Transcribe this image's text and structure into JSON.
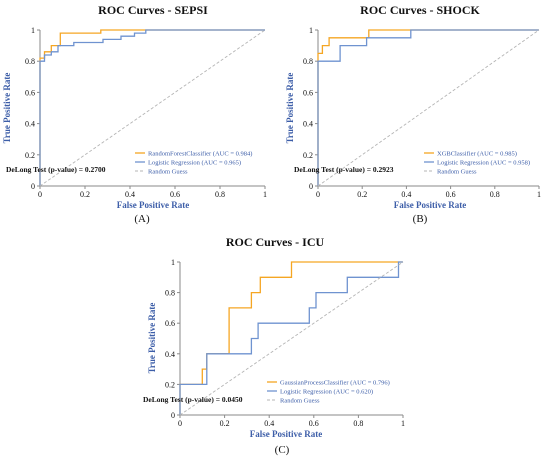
{
  "chart_data": [
    {
      "type": "line",
      "title": "ROC Curves - SEPSI",
      "xlabel": "False Positive Rate",
      "ylabel": "True Positive Rate",
      "xlim": [
        0,
        1
      ],
      "ylim": [
        0,
        1
      ],
      "x_ticks": [
        "0",
        "0.2",
        "0.4",
        "0.6",
        "0.8",
        "1"
      ],
      "y_ticks": [
        "0",
        "0.2",
        "0.4",
        "0.6",
        "0.8",
        "1"
      ],
      "annotation": "DeLong Test (p-value) = 0.2700",
      "panel_label": "(A)",
      "legend_position": "bottom-right",
      "series": [
        {
          "name": "RandomForestClassifier (AUC = 0.984)",
          "color": "#f5a623",
          "style": "solid",
          "points": [
            [
              0,
              0
            ],
            [
              0,
              0.82
            ],
            [
              0.02,
              0.82
            ],
            [
              0.02,
              0.86
            ],
            [
              0.05,
              0.86
            ],
            [
              0.05,
              0.9
            ],
            [
              0.09,
              0.9
            ],
            [
              0.09,
              0.98
            ],
            [
              0.27,
              0.98
            ],
            [
              0.27,
              1
            ],
            [
              1,
              1
            ]
          ]
        },
        {
          "name": "Logistic Regression (AUC = 0.965)",
          "color": "#6f93d0",
          "style": "solid",
          "points": [
            [
              0,
              0
            ],
            [
              0,
              0.8
            ],
            [
              0.02,
              0.8
            ],
            [
              0.02,
              0.84
            ],
            [
              0.05,
              0.84
            ],
            [
              0.05,
              0.86
            ],
            [
              0.08,
              0.86
            ],
            [
              0.08,
              0.9
            ],
            [
              0.15,
              0.9
            ],
            [
              0.15,
              0.92
            ],
            [
              0.28,
              0.92
            ],
            [
              0.28,
              0.94
            ],
            [
              0.36,
              0.94
            ],
            [
              0.36,
              0.96
            ],
            [
              0.42,
              0.96
            ],
            [
              0.42,
              0.98
            ],
            [
              0.47,
              0.98
            ],
            [
              0.47,
              1
            ],
            [
              1,
              1
            ]
          ]
        },
        {
          "name": "Random Guess",
          "color": "#b5b5b5",
          "style": "dashed",
          "points": [
            [
              0,
              0
            ],
            [
              1,
              1
            ]
          ]
        }
      ]
    },
    {
      "type": "line",
      "title": "ROC Curves - SHOCK",
      "xlabel": "False Positive Rate",
      "ylabel": "True Positive Rate",
      "xlim": [
        0,
        1
      ],
      "ylim": [
        0,
        1
      ],
      "x_ticks": [
        "0",
        "0.2",
        "0.4",
        "0.6",
        "0.8",
        "1"
      ],
      "y_ticks": [
        "0",
        "0.2",
        "0.4",
        "0.6",
        "0.8",
        "1"
      ],
      "annotation": "DeLong Test (p-value) = 0.2923",
      "panel_label": "(B)",
      "legend_position": "bottom-right",
      "series": [
        {
          "name": "XGBClassifier (AUC = 0.985)",
          "color": "#f5a623",
          "style": "solid",
          "points": [
            [
              0,
              0
            ],
            [
              0,
              0.85
            ],
            [
              0.02,
              0.85
            ],
            [
              0.02,
              0.9
            ],
            [
              0.05,
              0.9
            ],
            [
              0.05,
              0.95
            ],
            [
              0.23,
              0.95
            ],
            [
              0.23,
              1
            ],
            [
              1,
              1
            ]
          ]
        },
        {
          "name": "Logistic Regression (AUC = 0.958)",
          "color": "#6f93d0",
          "style": "solid",
          "points": [
            [
              0,
              0
            ],
            [
              0,
              0.8
            ],
            [
              0.1,
              0.8
            ],
            [
              0.1,
              0.9
            ],
            [
              0.22,
              0.9
            ],
            [
              0.22,
              0.95
            ],
            [
              0.42,
              0.95
            ],
            [
              0.42,
              1
            ],
            [
              1,
              1
            ]
          ]
        },
        {
          "name": "Random Guess",
          "color": "#b5b5b5",
          "style": "dashed",
          "points": [
            [
              0,
              0
            ],
            [
              1,
              1
            ]
          ]
        }
      ]
    },
    {
      "type": "line",
      "title": "ROC Curves - ICU",
      "xlabel": "False Positive Rate",
      "ylabel": "True Positive Rate",
      "xlim": [
        0,
        1
      ],
      "ylim": [
        0,
        1
      ],
      "x_ticks": [
        "0",
        "0.2",
        "0.4",
        "0.6",
        "0.8",
        "1"
      ],
      "y_ticks": [
        "0",
        "0.2",
        "0.4",
        "0.6",
        "0.8",
        "1"
      ],
      "annotation": "DeLong Test (p-value) = 0.0450",
      "panel_label": "(C)",
      "legend_position": "bottom-right",
      "series": [
        {
          "name": "GaussianProcessClassifier (AUC = 0.796)",
          "color": "#f5a623",
          "style": "solid",
          "points": [
            [
              0,
              0
            ],
            [
              0,
              0.2
            ],
            [
              0.1,
              0.2
            ],
            [
              0.1,
              0.3
            ],
            [
              0.12,
              0.3
            ],
            [
              0.12,
              0.4
            ],
            [
              0.22,
              0.4
            ],
            [
              0.22,
              0.7
            ],
            [
              0.32,
              0.7
            ],
            [
              0.32,
              0.8
            ],
            [
              0.36,
              0.8
            ],
            [
              0.36,
              0.9
            ],
            [
              0.5,
              0.9
            ],
            [
              0.5,
              1
            ],
            [
              1,
              1
            ]
          ]
        },
        {
          "name": "Logistic Regression (AUC = 0.620)",
          "color": "#6f93d0",
          "style": "solid",
          "points": [
            [
              0,
              0
            ],
            [
              0,
              0.2
            ],
            [
              0.12,
              0.2
            ],
            [
              0.12,
              0.4
            ],
            [
              0.32,
              0.4
            ],
            [
              0.32,
              0.5
            ],
            [
              0.35,
              0.5
            ],
            [
              0.35,
              0.6
            ],
            [
              0.58,
              0.6
            ],
            [
              0.58,
              0.7
            ],
            [
              0.61,
              0.7
            ],
            [
              0.61,
              0.8
            ],
            [
              0.75,
              0.8
            ],
            [
              0.75,
              0.9
            ],
            [
              0.98,
              0.9
            ],
            [
              0.98,
              1
            ],
            [
              1,
              1
            ]
          ]
        },
        {
          "name": "Random Guess",
          "color": "#b5b5b5",
          "style": "dashed",
          "points": [
            [
              0,
              0
            ],
            [
              1,
              1
            ]
          ]
        }
      ]
    }
  ]
}
